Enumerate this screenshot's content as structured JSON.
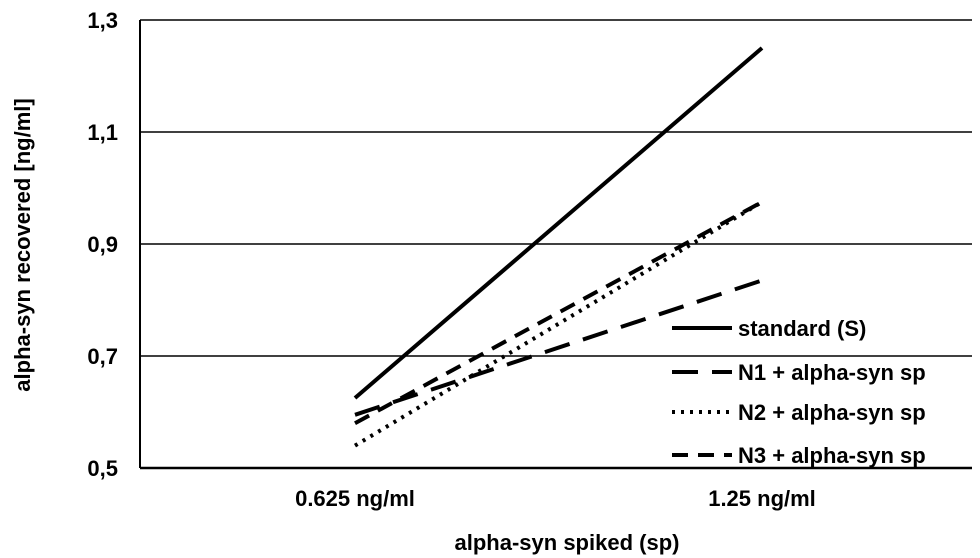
{
  "chart_data": {
    "type": "line",
    "categories": [
      "0.625 ng/ml",
      "1.25 ng/ml"
    ],
    "series": [
      {
        "name": "standard (S)",
        "values": [
          0.625,
          1.25
        ],
        "style": "solid"
      },
      {
        "name": "N1 + alpha-syn sp",
        "values": [
          0.595,
          0.835
        ],
        "style": "long-dash"
      },
      {
        "name": "N2 + alpha-syn sp",
        "values": [
          0.54,
          0.975
        ],
        "style": "dotted"
      },
      {
        "name": "N3 + alpha-syn sp",
        "values": [
          0.58,
          0.975
        ],
        "style": "dash"
      }
    ],
    "xlabel": "alpha-syn spiked (sp)",
    "ylabel": "alpha-syn recovered [ng/ml]",
    "ylim": [
      0.5,
      1.3
    ],
    "yticks": [
      "0,5",
      "0,7",
      "0,9",
      "1,1",
      "1,3"
    ],
    "grid": true,
    "legend": "bottom-right",
    "line_color": "#000000"
  }
}
